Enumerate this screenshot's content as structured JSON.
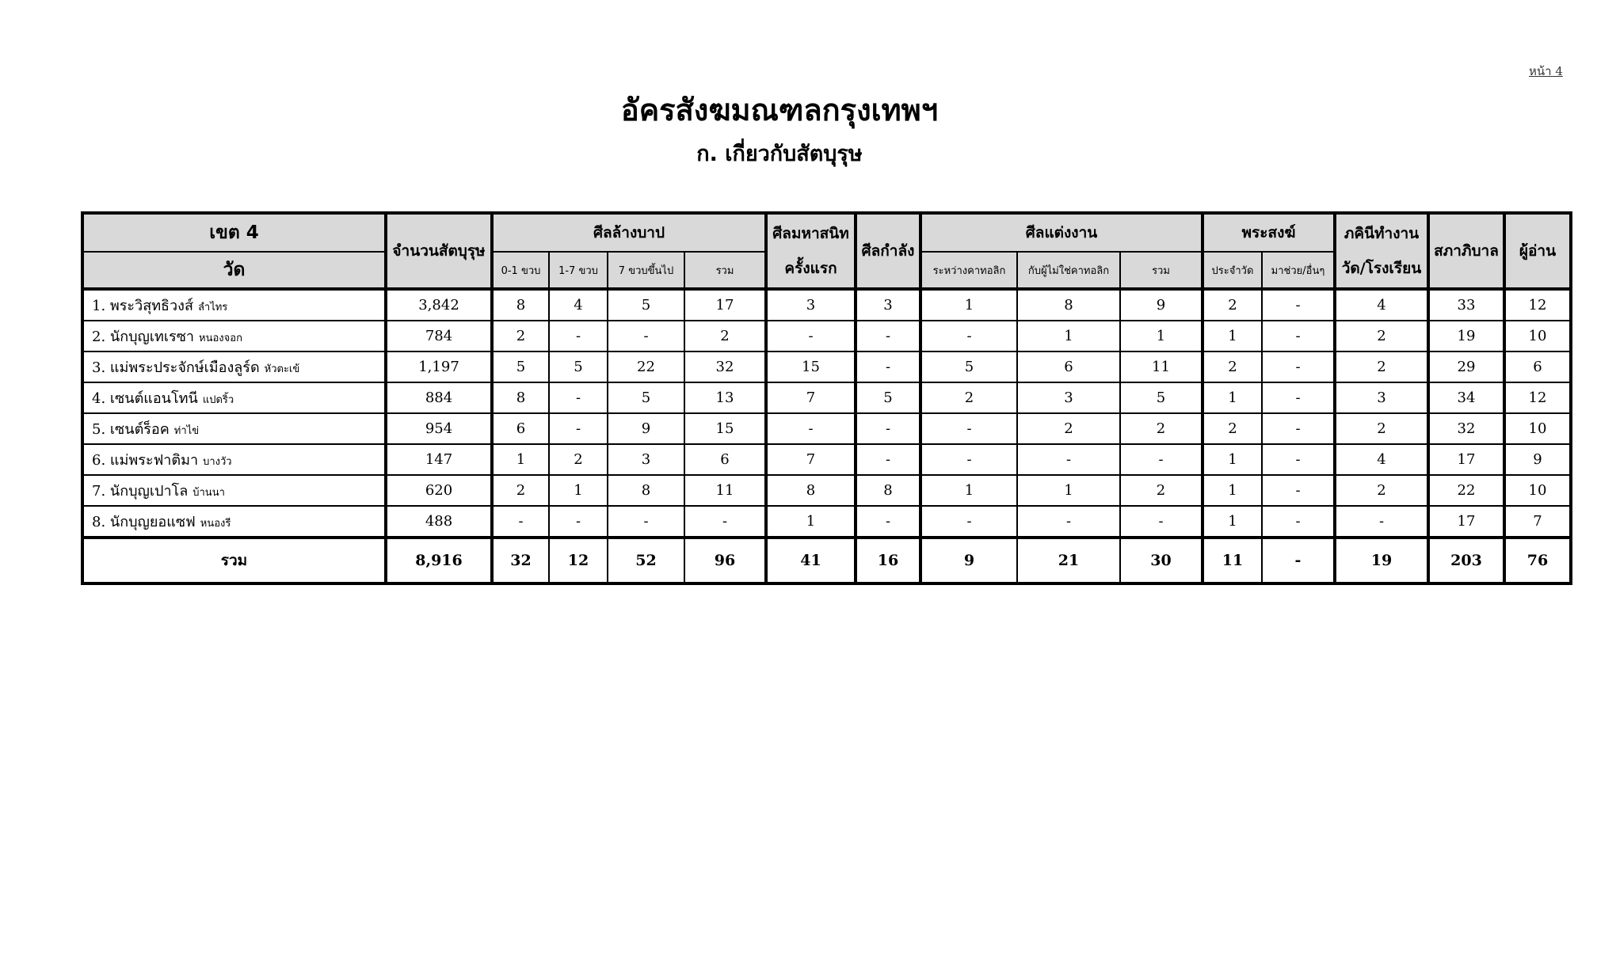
{
  "page_number": "หน้า 4",
  "title": "อัครสังฆมณฑลกรุงเทพฯ",
  "subtitle": "ก. เกี่ยวกับสัตบุรุษ",
  "table": {
    "headers": {
      "zone": "เขต 4",
      "parish": "วัด",
      "faithful_count": "จำนวนสัตบุรุษ",
      "baptism": "ศีลล้างบาป",
      "baptism_0_1": "0-1 ขวบ",
      "baptism_1_7": "1-7 ขวบ",
      "baptism_7_plus": "7 ขวบขึ้นไป",
      "baptism_total": "รวม",
      "first_communion_1": "ศีลมหาสนิท",
      "first_communion_2": "ครั้งแรก",
      "confirmation": "ศีลกำลัง",
      "marriage": "ศีลแต่งงาน",
      "marriage_catholic": "ระหว่างคาทอลิก",
      "marriage_mixed": "กับผู้ไม่ใช่คาทอลิก",
      "marriage_total": "รวม",
      "priests": "พระสงฆ์",
      "priests_resident": "ประจำวัด",
      "priests_helper": "มาช่วย/อื่นๆ",
      "sisters_1": "ภคินีทำงาน",
      "sisters_2": "วัด/โรงเรียน",
      "council": "สภาภิบาล",
      "readers": "ผู้อ่าน"
    },
    "rows": [
      {
        "name": "1. พระวิสุทธิวงส์",
        "location": "ลำไทร",
        "values": [
          "3,842",
          "8",
          "4",
          "5",
          "17",
          "3",
          "3",
          "1",
          "8",
          "9",
          "2",
          "-",
          "4",
          "33",
          "12"
        ]
      },
      {
        "name": "2. นักบุญเทเรซา",
        "location": "หนองจอก",
        "values": [
          "784",
          "2",
          "-",
          "-",
          "2",
          "-",
          "-",
          "-",
          "1",
          "1",
          "1",
          "-",
          "2",
          "19",
          "10"
        ]
      },
      {
        "name": "3. แม่พระประจักษ์เมืองลูร์ด",
        "location": "หัวตะเข้",
        "values": [
          "1,197",
          "5",
          "5",
          "22",
          "32",
          "15",
          "-",
          "5",
          "6",
          "11",
          "2",
          "-",
          "2",
          "29",
          "6"
        ]
      },
      {
        "name": "4. เซนต์แอนโทนี",
        "location": "แปดริ้ว",
        "values": [
          "884",
          "8",
          "-",
          "5",
          "13",
          "7",
          "5",
          "2",
          "3",
          "5",
          "1",
          "-",
          "3",
          "34",
          "12"
        ]
      },
      {
        "name": "5. เซนต์ร็อค",
        "location": "ท่าไข่",
        "values": [
          "954",
          "6",
          "-",
          "9",
          "15",
          "-",
          "-",
          "-",
          "2",
          "2",
          "2",
          "-",
          "2",
          "32",
          "10"
        ]
      },
      {
        "name": "6. แม่พระฟาติมา",
        "location": "บางวัว",
        "values": [
          "147",
          "1",
          "2",
          "3",
          "6",
          "7",
          "-",
          "-",
          "-",
          "-",
          "1",
          "-",
          "4",
          "17",
          "9"
        ]
      },
      {
        "name": "7. นักบุญเปาโล",
        "location": "บ้านนา",
        "values": [
          "620",
          "2",
          "1",
          "8",
          "11",
          "8",
          "8",
          "1",
          "1",
          "2",
          "1",
          "-",
          "2",
          "22",
          "10"
        ]
      },
      {
        "name": "8. นักบุญยอแซฟ",
        "location": "หนองรี",
        "values": [
          "488",
          "-",
          "-",
          "-",
          "-",
          "1",
          "-",
          "-",
          "-",
          "-",
          "1",
          "-",
          "-",
          "17",
          "7"
        ]
      }
    ],
    "total": {
      "label": "รวม",
      "values": [
        "8,916",
        "32",
        "12",
        "52",
        "96",
        "41",
        "16",
        "9",
        "21",
        "30",
        "11",
        "-",
        "19",
        "203",
        "76"
      ]
    }
  }
}
